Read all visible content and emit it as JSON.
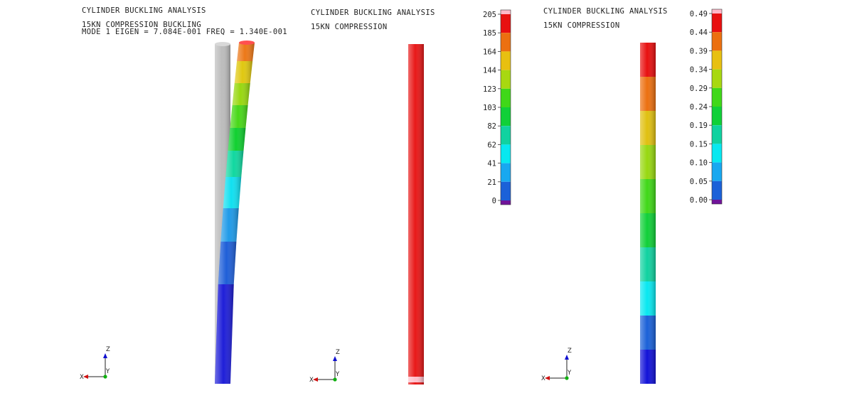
{
  "colors": {
    "bands": [
      "#1f1fd8",
      "#1f5fd8",
      "#1f9ae8",
      "#10e0f0",
      "#10d8a0",
      "#10d030",
      "#48d818",
      "#98d810",
      "#e0c810",
      "#ec7818",
      "#e81818"
    ],
    "legend": [
      "#70149a",
      "#1212d8",
      "#1b61d8",
      "#18a8f0",
      "#08e8f0",
      "#10d2a0",
      "#10d038",
      "#40d818",
      "#a8d810",
      "#e8c010",
      "#ec7010",
      "#e81010",
      "#ffb8c8"
    ],
    "undeformed": "#bcbcbc",
    "text": "#222222"
  },
  "panels": [
    {
      "title": "CYLINDER BUCKLING ANALYSIS",
      "subtitle": "15KN COMPRESSION BUCKLING",
      "subtitle2": "MODE 1 EIGEN = 7.084E-001 FREQ = 1.340E-001",
      "axes": {
        "z": "Z",
        "x": "X",
        "y": "Y"
      }
    },
    {
      "title": "CYLINDER BUCKLING ANALYSIS",
      "subtitle": "15KN COMPRESSION",
      "legend_ticks": [
        "205",
        "185",
        "164",
        "144",
        "123",
        "103",
        "82",
        "62",
        "41",
        "21",
        "0"
      ],
      "axes": {
        "z": "Z",
        "x": "X",
        "y": "Y"
      }
    },
    {
      "title": "CYLINDER BUCKLING ANALYSIS",
      "subtitle": "15KN COMPRESSION",
      "legend_ticks": [
        "0.49",
        "0.44",
        "0.39",
        "0.34",
        "0.29",
        "0.24",
        "0.19",
        "0.15",
        "0.10",
        "0.05",
        "0.00"
      ],
      "axes": {
        "z": "Z",
        "x": "X",
        "y": "Y"
      }
    }
  ]
}
